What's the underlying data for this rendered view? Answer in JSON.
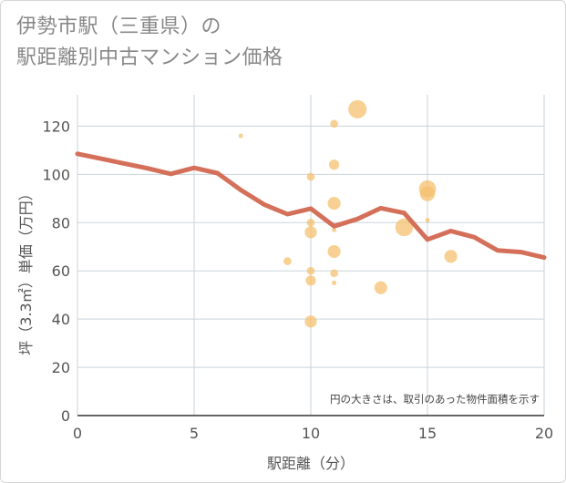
{
  "chart_data": {
    "type": "scatter",
    "title": "伊勢市駅（三重県）の\n駅距離別中古マンション価格",
    "xlabel": "駅距離（分）",
    "ylabel": "坪（3.3㎡）単価（万円）",
    "xlim": [
      0,
      20
    ],
    "ylim": [
      0,
      133
    ],
    "x_ticks": [
      "0",
      "5",
      "10",
      "15",
      "20"
    ],
    "y_ticks": [
      "0",
      "20",
      "40",
      "60",
      "80",
      "100",
      "120"
    ],
    "grid": true,
    "note": "円の大きさは、取引のあった物件面積を示す",
    "colors": {
      "bubble": "#f5c06f",
      "line": "#d4705a",
      "grid": "#c9d3db"
    },
    "bubbles": [
      {
        "x": 7,
        "y": 116,
        "size": 1
      },
      {
        "x": 9,
        "y": 64,
        "size": 3
      },
      {
        "x": 10,
        "y": 99,
        "size": 3
      },
      {
        "x": 10,
        "y": 80,
        "size": 3
      },
      {
        "x": 10,
        "y": 76,
        "size": 7
      },
      {
        "x": 10,
        "y": 60,
        "size": 3
      },
      {
        "x": 10,
        "y": 56,
        "size": 5
      },
      {
        "x": 10,
        "y": 39,
        "size": 7
      },
      {
        "x": 11,
        "y": 121,
        "size": 3
      },
      {
        "x": 11,
        "y": 104,
        "size": 5
      },
      {
        "x": 11,
        "y": 88,
        "size": 8
      },
      {
        "x": 11,
        "y": 77,
        "size": 1
      },
      {
        "x": 11,
        "y": 68,
        "size": 8
      },
      {
        "x": 11,
        "y": 59,
        "size": 3
      },
      {
        "x": 11,
        "y": 55,
        "size": 1
      },
      {
        "x": 12,
        "y": 127,
        "size": 16
      },
      {
        "x": 13,
        "y": 53,
        "size": 8
      },
      {
        "x": 14,
        "y": 78,
        "size": 15
      },
      {
        "x": 15,
        "y": 94,
        "size": 14
      },
      {
        "x": 15,
        "y": 92,
        "size": 11
      },
      {
        "x": 15,
        "y": 81,
        "size": 1
      },
      {
        "x": 16,
        "y": 66,
        "size": 8
      }
    ],
    "trend": {
      "x": [
        0,
        1,
        2,
        3,
        4,
        5,
        6,
        7,
        8,
        9,
        10,
        11,
        12,
        13,
        14,
        15,
        16,
        17,
        18,
        19,
        20
      ],
      "y": [
        108.5,
        106.5,
        104.5,
        102.5,
        100.2,
        102.7,
        100.5,
        93.5,
        87.5,
        83.5,
        85.8,
        78.5,
        81.5,
        86,
        84,
        73,
        76.5,
        74,
        68.5,
        67.8,
        65.5
      ]
    }
  }
}
